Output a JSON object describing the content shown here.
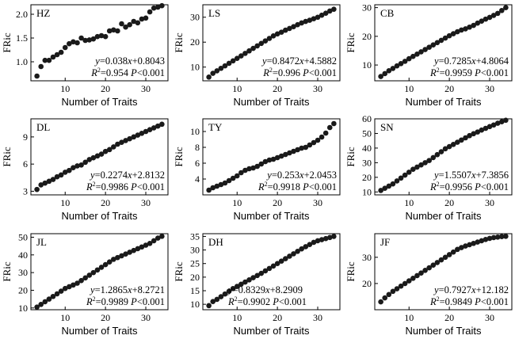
{
  "chart_data": [
    {
      "type": "scatter",
      "label": "HZ",
      "xlabel": "Number of Traits",
      "ylabel": "FRic",
      "xlim": [
        1.5,
        35.5
      ],
      "ylim": [
        0.6,
        2.2
      ],
      "xticks": [
        10,
        20,
        30
      ],
      "yticks": [
        1.0,
        1.5,
        2.0
      ],
      "ytick_labels": [
        "1.0",
        "1.5",
        "2.0"
      ],
      "x": [
        3,
        4,
        5,
        6,
        7,
        8,
        9,
        10,
        11,
        12,
        13,
        14,
        15,
        16,
        17,
        18,
        19,
        20,
        21,
        22,
        23,
        24,
        25,
        26,
        27,
        28,
        29,
        30,
        31,
        32,
        33,
        34
      ],
      "y": [
        0.7,
        0.9,
        1.03,
        1.03,
        1.1,
        1.15,
        1.2,
        1.3,
        1.38,
        1.42,
        1.4,
        1.5,
        1.45,
        1.46,
        1.48,
        1.53,
        1.55,
        1.53,
        1.65,
        1.67,
        1.65,
        1.8,
        1.73,
        1.78,
        1.85,
        1.82,
        1.9,
        1.92,
        2.05,
        2.13,
        2.15,
        2.18
      ],
      "equation": {
        "y": "y",
        "eq": "=0.038",
        "x": "x",
        "rest": "+0.8043"
      },
      "stats": {
        "r": "R",
        "two": "2",
        "r2val": "=0.954 ",
        "p": "P",
        "pval": "<0.001"
      },
      "eq_anchor": "end"
    },
    {
      "type": "scatter",
      "label": "LS",
      "xlabel": "Number of Traits",
      "ylabel": "FRic",
      "xlim": [
        1.5,
        35.5
      ],
      "ylim": [
        4.5,
        35
      ],
      "xticks": [
        10,
        20,
        30
      ],
      "yticks": [
        10,
        20,
        30
      ],
      "ytick_labels": [
        "10",
        "20",
        "30"
      ],
      "x": [
        3,
        4,
        5,
        6,
        7,
        8,
        9,
        10,
        11,
        12,
        13,
        14,
        15,
        16,
        17,
        18,
        19,
        20,
        21,
        22,
        23,
        24,
        25,
        26,
        27,
        28,
        29,
        30,
        31,
        32,
        33,
        34
      ],
      "y": [
        6.0,
        7.5,
        8.5,
        9.5,
        10.5,
        11.5,
        12.5,
        13.5,
        14.5,
        15.5,
        16.5,
        17.5,
        18.5,
        19.5,
        20.5,
        21.5,
        22.5,
        23.3,
        24.0,
        24.8,
        25.5,
        26.2,
        27.0,
        27.7,
        28.3,
        28.8,
        29.4,
        30.0,
        30.8,
        31.6,
        32.5,
        33.2
      ],
      "equation": {
        "y": "y",
        "eq": "=0.8472",
        "x": "x",
        "rest": "+4.5882"
      },
      "stats": {
        "r": "R",
        "two": "2",
        "r2val": "=0.996 ",
        "p": "P",
        "pval": "<0.001"
      },
      "eq_anchor": "end"
    },
    {
      "type": "scatter",
      "label": "CB",
      "xlabel": "Number of Traits",
      "ylabel": "FRic",
      "xlim": [
        1.5,
        35.5
      ],
      "ylim": [
        4.5,
        31
      ],
      "xticks": [
        10,
        20,
        30
      ],
      "yticks": [
        10,
        20,
        30
      ],
      "ytick_labels": [
        "10",
        "20",
        "30"
      ],
      "x": [
        3,
        4,
        5,
        6,
        7,
        8,
        9,
        10,
        11,
        12,
        13,
        14,
        15,
        16,
        17,
        18,
        19,
        20,
        21,
        22,
        23,
        24,
        25,
        26,
        27,
        28,
        29,
        30,
        31,
        32,
        33,
        34
      ],
      "y": [
        6.0,
        7.0,
        8.0,
        8.8,
        9.7,
        10.5,
        11.3,
        12.2,
        13.0,
        13.8,
        14.6,
        15.4,
        16.2,
        17.0,
        17.8,
        18.6,
        19.4,
        20.2,
        20.9,
        21.6,
        22.2,
        22.6,
        23.2,
        23.8,
        24.6,
        25.3,
        26.0,
        26.6,
        27.3,
        28.0,
        29.0,
        30.0
      ],
      "equation": {
        "y": "y",
        "eq": "=0.7285",
        "x": "x",
        "rest": "+4.8064"
      },
      "stats": {
        "r": "R",
        "two": "2",
        "r2val": "=0.9959 ",
        "p": "P",
        "pval": "<0.001"
      },
      "eq_anchor": "end"
    },
    {
      "type": "scatter",
      "label": "DL",
      "xlabel": "Number of Traits",
      "ylabel": "FRic",
      "xlim": [
        1.5,
        35.5
      ],
      "ylim": [
        2.6,
        11
      ],
      "xticks": [
        10,
        20,
        30
      ],
      "yticks": [
        3,
        6,
        9
      ],
      "ytick_labels": [
        "3",
        "6",
        "9"
      ],
      "x": [
        3,
        4,
        5,
        6,
        7,
        8,
        9,
        10,
        11,
        12,
        13,
        14,
        15,
        16,
        17,
        18,
        19,
        20,
        21,
        22,
        23,
        24,
        25,
        26,
        27,
        28,
        29,
        30,
        31,
        32,
        33,
        34
      ],
      "y": [
        3.2,
        3.7,
        3.9,
        4.1,
        4.3,
        4.6,
        4.8,
        5.1,
        5.3,
        5.6,
        5.8,
        5.9,
        6.2,
        6.5,
        6.7,
        6.9,
        7.1,
        7.4,
        7.6,
        7.9,
        8.2,
        8.4,
        8.6,
        8.8,
        9.0,
        9.2,
        9.4,
        9.6,
        9.8,
        10.0,
        10.2,
        10.4
      ],
      "equation": {
        "y": "y",
        "eq": "=0.2274",
        "x": "x",
        "rest": "+2.8132"
      },
      "stats": {
        "r": "R",
        "two": "2",
        "r2val": "=0.9986 ",
        "p": "P",
        "pval": "<0.001"
      },
      "eq_anchor": "end"
    },
    {
      "type": "scatter",
      "label": "TY",
      "xlabel": "Number of Traits",
      "ylabel": "FRic",
      "xlim": [
        1.5,
        35.5
      ],
      "ylim": [
        2.0,
        11.6
      ],
      "xticks": [
        10,
        20,
        30
      ],
      "yticks": [
        4,
        6,
        8,
        10
      ],
      "ytick_labels": [
        "4",
        "6",
        "8",
        "10"
      ],
      "x": [
        3,
        4,
        5,
        6,
        7,
        8,
        9,
        10,
        11,
        12,
        13,
        14,
        15,
        16,
        17,
        18,
        19,
        20,
        21,
        22,
        23,
        24,
        25,
        26,
        27,
        28,
        29,
        30,
        31,
        32,
        33,
        34
      ],
      "y": [
        2.6,
        2.9,
        3.1,
        3.3,
        3.5,
        3.8,
        4.1,
        4.4,
        4.8,
        5.1,
        5.3,
        5.4,
        5.6,
        5.9,
        6.2,
        6.4,
        6.5,
        6.7,
        6.9,
        7.1,
        7.3,
        7.5,
        7.7,
        7.9,
        8.0,
        8.3,
        8.6,
        8.9,
        9.3,
        9.8,
        10.5,
        11.0
      ],
      "equation": {
        "y": "y",
        "eq": "=0.253",
        "x": "x",
        "rest": "+2.0453"
      },
      "stats": {
        "r": "R",
        "two": "2",
        "r2val": "=0.9918 ",
        "p": "P",
        "pval": "<0.001"
      },
      "eq_anchor": "end"
    },
    {
      "type": "scatter",
      "label": "SN",
      "xlabel": "Number of Traits",
      "ylabel": "FRic",
      "xlim": [
        1.5,
        35.5
      ],
      "ylim": [
        8,
        60
      ],
      "xticks": [
        10,
        20,
        30
      ],
      "yticks": [
        10,
        20,
        30,
        40,
        50,
        60
      ],
      "ytick_labels": [
        "10",
        "20",
        "30",
        "40",
        "50",
        "60"
      ],
      "x": [
        3,
        4,
        5,
        6,
        7,
        8,
        9,
        10,
        11,
        12,
        13,
        14,
        15,
        16,
        17,
        18,
        19,
        20,
        21,
        22,
        23,
        24,
        25,
        26,
        27,
        28,
        29,
        30,
        31,
        32,
        33,
        34
      ],
      "y": [
        11.0,
        12.5,
        14.0,
        15.5,
        17.5,
        19.5,
        21.5,
        23.5,
        25.5,
        27.0,
        28.5,
        30.0,
        31.5,
        33.5,
        35.5,
        37.5,
        39.5,
        41.0,
        42.5,
        44.0,
        45.5,
        47.0,
        48.5,
        49.8,
        51.0,
        52.3,
        53.5,
        54.7,
        55.8,
        57.0,
        58.0,
        59.0
      ],
      "equation": {
        "y": "y",
        "eq": "=1.5507",
        "x": "x",
        "rest": "+7.3856"
      },
      "stats": {
        "r": "R",
        "two": "2",
        "r2val": "=0.9956 ",
        "p": "P",
        "pval": "<0.001"
      },
      "eq_anchor": "end"
    },
    {
      "type": "scatter",
      "label": "JL",
      "xlabel": "Number of Traits",
      "ylabel": "FRic",
      "xlim": [
        1.5,
        35.5
      ],
      "ylim": [
        9,
        52
      ],
      "xticks": [
        10,
        20,
        30
      ],
      "yticks": [
        10,
        20,
        30,
        40,
        50
      ],
      "ytick_labels": [
        "10",
        "20",
        "30",
        "40",
        "50"
      ],
      "x": [
        3,
        4,
        5,
        6,
        7,
        8,
        9,
        10,
        11,
        12,
        13,
        14,
        15,
        16,
        17,
        18,
        19,
        20,
        21,
        22,
        23,
        24,
        25,
        26,
        27,
        28,
        29,
        30,
        31,
        32,
        33,
        34
      ],
      "y": [
        10.5,
        12.0,
        13.5,
        15.0,
        16.5,
        18.0,
        19.5,
        21.0,
        22.0,
        23.0,
        24.0,
        25.5,
        27.0,
        28.5,
        30.0,
        31.5,
        33.0,
        34.5,
        36.0,
        37.5,
        38.5,
        39.5,
        40.5,
        41.5,
        42.5,
        43.5,
        44.5,
        45.5,
        46.5,
        48.0,
        49.5,
        50.5
      ],
      "equation": {
        "y": "y",
        "eq": "=1.2865",
        "x": "x",
        "rest": "+8.2721"
      },
      "stats": {
        "r": "R",
        "two": "2",
        "r2val": "=0.9989 ",
        "p": "P",
        "pval": "<0.001"
      },
      "eq_anchor": "end"
    },
    {
      "type": "scatter",
      "label": "DH",
      "xlabel": "Number of Traits",
      "ylabel": "FRic",
      "xlim": [
        1.5,
        35.5
      ],
      "ylim": [
        8,
        36
      ],
      "xticks": [
        10,
        20,
        30
      ],
      "yticks": [
        10,
        15,
        20,
        25,
        30,
        35
      ],
      "ytick_labels": [
        "10",
        "15",
        "20",
        "25",
        "30",
        "35"
      ],
      "x": [
        3,
        4,
        5,
        6,
        7,
        8,
        9,
        10,
        11,
        12,
        13,
        14,
        15,
        16,
        17,
        18,
        19,
        20,
        21,
        22,
        23,
        24,
        25,
        26,
        27,
        28,
        29,
        30,
        31,
        32,
        33,
        34
      ],
      "y": [
        9.5,
        11.0,
        11.8,
        12.8,
        13.8,
        14.8,
        15.8,
        16.6,
        17.4,
        18.2,
        19.0,
        19.8,
        20.6,
        21.4,
        22.3,
        23.2,
        24.1,
        25.0,
        25.9,
        26.8,
        27.7,
        28.6,
        29.5,
        30.4,
        31.2,
        32.0,
        32.8,
        33.4,
        33.8,
        34.2,
        34.6,
        35.0
      ],
      "equation": {
        "y": "y",
        "eq": "=0.8329",
        "x": "x",
        "rest": "+8.2909"
      },
      "stats": {
        "r": "R",
        "two": "2",
        "r2val": "=0.9902 ",
        "p": "P",
        "pval": "<0.001"
      },
      "eq_anchor": "start"
    },
    {
      "type": "scatter",
      "label": "JF",
      "xlabel": "Number of Traits",
      "ylabel": "FRic",
      "xlim": [
        1.5,
        35.5
      ],
      "ylim": [
        10,
        39
      ],
      "xticks": [
        10,
        20,
        30
      ],
      "yticks": [
        20,
        30
      ],
      "ytick_labels": [
        "20",
        "30"
      ],
      "x": [
        3,
        4,
        5,
        6,
        7,
        8,
        9,
        10,
        11,
        12,
        13,
        14,
        15,
        16,
        17,
        18,
        19,
        20,
        21,
        22,
        23,
        24,
        25,
        26,
        27,
        28,
        29,
        30,
        31,
        32,
        33,
        34
      ],
      "y": [
        13.0,
        14.5,
        15.8,
        17.0,
        18.0,
        19.0,
        20.0,
        21.0,
        22.0,
        23.0,
        24.0,
        25.0,
        26.0,
        27.0,
        28.0,
        29.0,
        30.0,
        31.0,
        32.0,
        33.0,
        33.7,
        34.3,
        34.8,
        35.3,
        35.8,
        36.3,
        36.8,
        37.2,
        37.5,
        37.7,
        37.9,
        38.0
      ],
      "equation": {
        "y": "y",
        "eq": "=0.7927",
        "x": "x",
        "rest": "+12.182"
      },
      "stats": {
        "r": "R",
        "two": "2",
        "r2val": "=0.9849 ",
        "p": "P",
        "pval": "<0.001"
      },
      "eq_anchor": "end"
    }
  ]
}
